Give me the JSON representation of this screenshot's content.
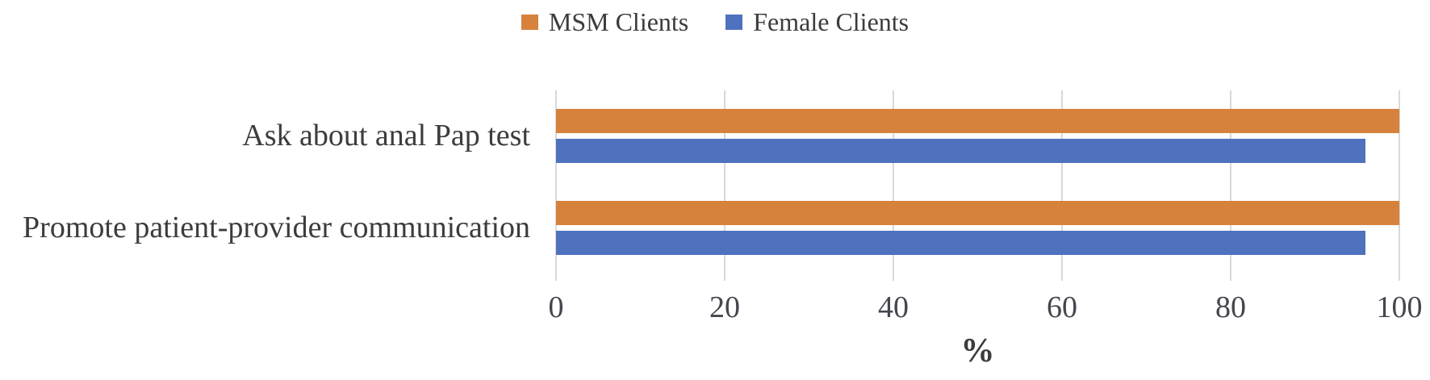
{
  "chart_data": {
    "type": "bar",
    "orientation": "horizontal",
    "title": "",
    "categories": [
      "Ask about anal Pap test",
      "Promote patient-provider communication"
    ],
    "series": [
      {
        "name": "MSM Clients",
        "color": "#d6813c",
        "values": [
          100,
          100
        ]
      },
      {
        "name": "Female Clients",
        "color": "#4f72be",
        "values": [
          96,
          96
        ]
      }
    ],
    "xlabel": "%",
    "xlim": [
      0,
      100
    ],
    "xticks": [
      0,
      20,
      40,
      60,
      80,
      100
    ],
    "grid": true,
    "gridline_color": "#d9d9d9",
    "legend_position": "top-center",
    "text_color": "#3c3c3c",
    "background_color": "#ffffff"
  }
}
